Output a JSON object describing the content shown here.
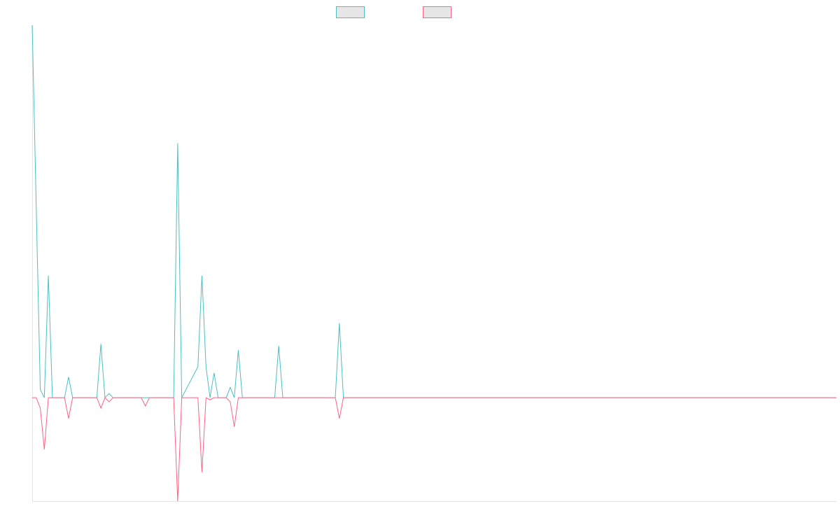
{
  "chart_data": {
    "type": "line",
    "title": "",
    "xlabel": "",
    "ylabel": "",
    "x_count": 200,
    "ylim": [
      -50,
      180
    ],
    "grid": false,
    "legend_position": "top-center",
    "series": [
      {
        "label": "",
        "color": "#4bc0c0",
        "points": [
          [
            0,
            180
          ],
          [
            2,
            4
          ],
          [
            3,
            0
          ],
          [
            4,
            59
          ],
          [
            5,
            0
          ],
          [
            8,
            0
          ],
          [
            9,
            10
          ],
          [
            10,
            0
          ],
          [
            16,
            0
          ],
          [
            17,
            26
          ],
          [
            18,
            0
          ],
          [
            19,
            2
          ],
          [
            20,
            0
          ],
          [
            35,
            0
          ],
          [
            36,
            123
          ],
          [
            37,
            0
          ],
          [
            41,
            15
          ],
          [
            42,
            59
          ],
          [
            43,
            15
          ],
          [
            44,
            0
          ],
          [
            45,
            12
          ],
          [
            46,
            0
          ],
          [
            48,
            0
          ],
          [
            49,
            5
          ],
          [
            50,
            0
          ],
          [
            51,
            23
          ],
          [
            52,
            0
          ],
          [
            60,
            0
          ],
          [
            61,
            25
          ],
          [
            62,
            0
          ],
          [
            75,
            0
          ],
          [
            76,
            36
          ],
          [
            77,
            0
          ],
          [
            199,
            0
          ]
        ]
      },
      {
        "label": "",
        "color": "#ff6384",
        "points": [
          [
            0,
            0
          ],
          [
            1,
            0
          ],
          [
            2,
            -5
          ],
          [
            3,
            -25
          ],
          [
            4,
            0
          ],
          [
            8,
            0
          ],
          [
            9,
            -10
          ],
          [
            10,
            0
          ],
          [
            16,
            0
          ],
          [
            17,
            -5
          ],
          [
            18,
            0
          ],
          [
            19,
            -2
          ],
          [
            20,
            0
          ],
          [
            27,
            0
          ],
          [
            28,
            -4
          ],
          [
            29,
            0
          ],
          [
            35,
            0
          ],
          [
            36,
            -50
          ],
          [
            37,
            0
          ],
          [
            41,
            0
          ],
          [
            42,
            -36
          ],
          [
            43,
            0
          ],
          [
            44,
            -1
          ],
          [
            45,
            0
          ],
          [
            48,
            0
          ],
          [
            49,
            -2
          ],
          [
            50,
            -14
          ],
          [
            51,
            0
          ],
          [
            75,
            0
          ],
          [
            76,
            -10
          ],
          [
            77,
            0
          ],
          [
            199,
            0
          ]
        ]
      }
    ]
  }
}
